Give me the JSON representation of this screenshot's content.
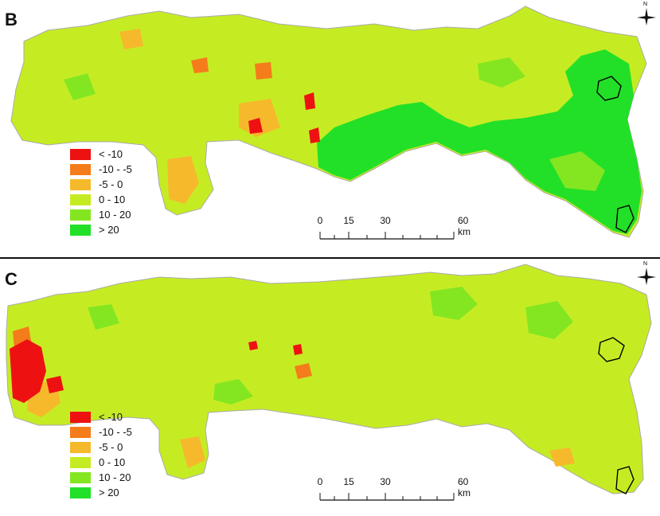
{
  "panels": [
    {
      "label": "B",
      "dominant_fill": "#c5ec23"
    },
    {
      "label": "C",
      "dominant_fill": "#c5ec23"
    }
  ],
  "legend": [
    {
      "label": "< -10",
      "color": "#ee1111"
    },
    {
      "label": "-10 - -5",
      "color": "#f57c1a"
    },
    {
      "label": "-5 - 0",
      "color": "#f6b92c"
    },
    {
      "label": "0 - 10",
      "color": "#c5ec23"
    },
    {
      "label": "10 - 20",
      "color": "#84e621"
    },
    {
      "label": "> 20",
      "color": "#22e027"
    }
  ],
  "scalebar": {
    "ticks": [
      "0",
      "15",
      "30",
      "60 km"
    ]
  },
  "north_arrow": {
    "label": "N",
    "icon": "compass-rose-icon"
  }
}
